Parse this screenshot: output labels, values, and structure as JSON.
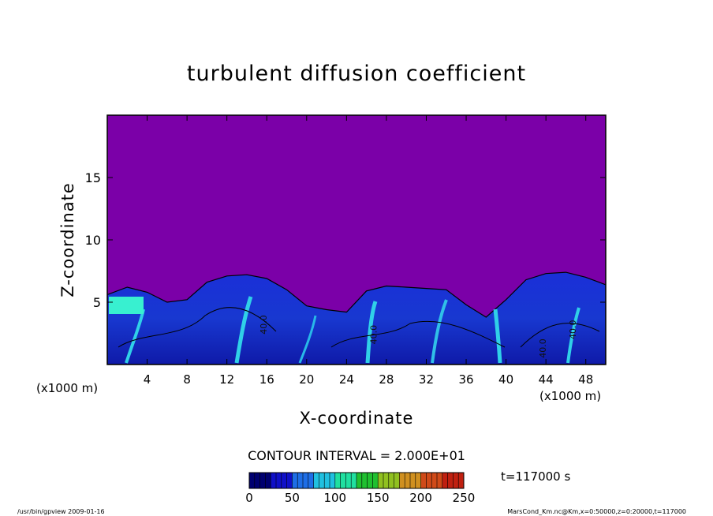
{
  "chart_data": {
    "type": "heatmap",
    "title": "turbulent diffusion coefficient",
    "xlabel": "X-coordinate",
    "ylabel": "Z-coordinate",
    "x_unit_label": "(x1000 m)",
    "y_unit_label": "(x1000 m)",
    "xlim": [
      0,
      50
    ],
    "ylim": [
      0,
      20
    ],
    "x_ticks": [
      "4",
      "8",
      "12",
      "16",
      "20",
      "24",
      "28",
      "32",
      "36",
      "40",
      "44",
      "48"
    ],
    "y_ticks": [
      "5",
      "10",
      "15"
    ],
    "contour_interval_label": "CONTOUR INTERVAL = 2.000E+01",
    "contour_labels": [
      "40.0",
      "40.0",
      "40.0",
      "40.0"
    ],
    "colorbar": {
      "min": 0,
      "max": 250,
      "ticks": [
        "0",
        "50",
        "100",
        "150",
        "200",
        "250"
      ],
      "colors": [
        "#000070",
        "#1010c8",
        "#1e6ee6",
        "#20c0e0",
        "#20e0a0",
        "#20c030",
        "#90c020",
        "#d09020",
        "#d04a18",
        "#c02010"
      ]
    },
    "time_label": "t=117000 s",
    "background_color": "#7b00a8",
    "turbulent_layer_top": [
      [
        0,
        5.6
      ],
      [
        2,
        6.2
      ],
      [
        4,
        5.8
      ],
      [
        6,
        5.0
      ],
      [
        8,
        5.2
      ],
      [
        10,
        6.6
      ],
      [
        12,
        7.1
      ],
      [
        14,
        7.2
      ],
      [
        16,
        6.9
      ],
      [
        18,
        6.0
      ],
      [
        20,
        4.7
      ],
      [
        22,
        4.4
      ],
      [
        24,
        4.2
      ],
      [
        26,
        5.9
      ],
      [
        28,
        6.3
      ],
      [
        30,
        6.2
      ],
      [
        32,
        6.1
      ],
      [
        34,
        6.0
      ],
      [
        36,
        4.8
      ],
      [
        38,
        3.8
      ],
      [
        40,
        5.2
      ],
      [
        42,
        6.8
      ],
      [
        44,
        7.3
      ],
      [
        46,
        7.4
      ],
      [
        48,
        7.0
      ],
      [
        50,
        6.4
      ]
    ]
  },
  "footer": {
    "left": "/usr/bin/gpview   2009-01-16",
    "right": "MarsCond_Km.nc@Km,x=0:50000,z=0:20000,t=117000"
  }
}
